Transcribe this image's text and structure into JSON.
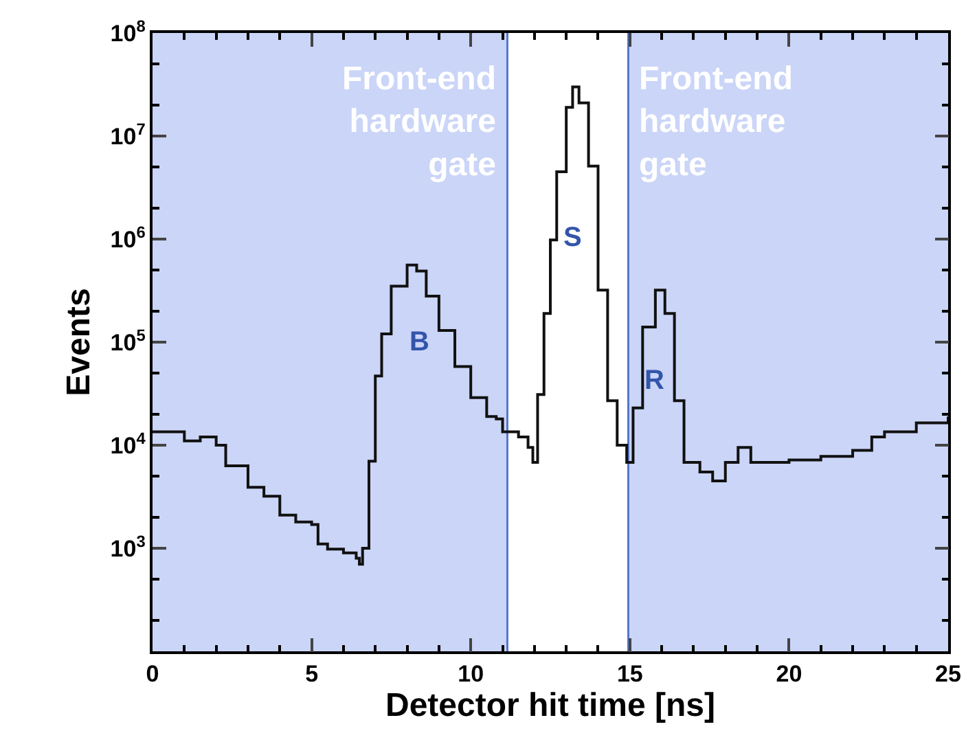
{
  "chart_data": {
    "type": "step",
    "xlabel": "Detector hit time [ns]",
    "ylabel": "Events",
    "log": "y",
    "xlim": [
      0,
      25
    ],
    "xticks": [
      0,
      5,
      10,
      15,
      20,
      25
    ],
    "ylim": [
      100,
      100000000
    ],
    "yticks": [
      {
        "value": 100,
        "label": null
      },
      {
        "value": 1000,
        "label": "10$^{3}$"
      },
      {
        "value": 10000,
        "label": "10$^{4}$"
      },
      {
        "value": 100000,
        "label": "10$^{5}$"
      },
      {
        "value": 1000000,
        "label": "10$^{6}$"
      },
      {
        "value": 10000000,
        "label": "10$^{7}$"
      },
      {
        "value": 100000000,
        "label": "10$^{8}$"
      }
    ],
    "x": [
      0,
      1,
      1.5,
      2,
      2.3,
      3,
      3.5,
      4,
      4.5,
      5,
      5.2,
      5.5,
      6,
      6.4,
      6.5,
      6.6,
      6.8,
      7.0,
      7.2,
      7.5,
      8.0,
      8.3,
      8.6,
      9.0,
      9.5,
      10,
      10.5,
      10.8,
      11,
      11.5,
      11.8,
      11.95,
      12.1,
      12.3,
      12.5,
      12.7,
      13.0,
      13.2,
      13.4,
      13.7,
      14.0,
      14.3,
      14.6,
      14.9,
      15.1,
      15.4,
      15.8,
      16.1,
      16.4,
      16.7,
      17.2,
      17.6,
      18.0,
      18.4,
      18.8,
      19.3,
      20,
      21,
      22,
      22.6,
      23,
      24,
      25
    ],
    "series": [
      {
        "color": "#111111",
        "values": [
          13500,
          11000,
          12000,
          10000,
          6300,
          3900,
          3200,
          2100,
          1800,
          1700,
          1100,
          980,
          900,
          800,
          700,
          1000,
          7000,
          47000,
          120000,
          350000,
          560000,
          490000,
          280000,
          130000,
          58000,
          29000,
          19000,
          18000,
          13500,
          12000,
          9500,
          6800,
          31000,
          190000,
          980000,
          4500000,
          19000000,
          30000000,
          21000000,
          5100000,
          320000,
          27000,
          10000,
          6800,
          23000,
          140000,
          320000,
          190000,
          27000,
          6800,
          5500,
          4500,
          6800,
          9500,
          6800,
          6800,
          7200,
          7800,
          8900,
          12000,
          13500,
          16500,
          19000
        ]
      }
    ],
    "bands": [
      {
        "axis": "x",
        "from": 0,
        "to": 11.15,
        "color": "#cad5f7"
      },
      {
        "axis": "x",
        "from": 14.95,
        "to": 25,
        "color": "#cad5f7"
      }
    ],
    "annotations": [
      {
        "text": "Front-end\nhardware\ngate",
        "x": 11.15,
        "y": 100000000
      },
      {
        "text": "Front-end\nhardware\ngate",
        "x": 14.95,
        "y": 100000000
      },
      "B",
      "S",
      "R"
    ],
    "ref_lines": [
      {
        "axis": "x",
        "value": 11.15,
        "color": "#5577cc"
      },
      {
        "axis": "x",
        "value": 14.95,
        "color": "#5577cc"
      }
    ]
  }
}
